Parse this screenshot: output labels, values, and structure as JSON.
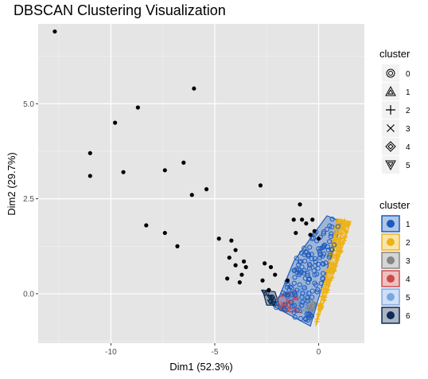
{
  "chart_data": {
    "type": "scatter",
    "title": "DBSCAN Clustering Visualization",
    "xlabel": "Dim1 (52.3%)",
    "ylabel": "Dim2 (29.7%)",
    "xlim": [
      -13.5,
      2.2
    ],
    "ylim": [
      -1.3,
      7.1
    ],
    "x_ticks": [
      -10,
      -5,
      0
    ],
    "x_tick_labels": [
      "-10",
      "-5",
      "0"
    ],
    "y_ticks": [
      0,
      2.5,
      5
    ],
    "y_tick_labels": [
      "0.0",
      "2.5",
      "5.0"
    ],
    "grid": true,
    "panel_background": "#e5e5e5",
    "legend_shape": {
      "title": "cluster",
      "entries": [
        {
          "label": "0",
          "shape": "double-circle"
        },
        {
          "label": "1",
          "shape": "triangle"
        },
        {
          "label": "2",
          "shape": "plus"
        },
        {
          "label": "3",
          "shape": "cross"
        },
        {
          "label": "4",
          "shape": "double-diamond"
        },
        {
          "label": "5",
          "shape": "down-triangle"
        }
      ]
    },
    "legend_fill": {
      "title": "cluster",
      "entries": [
        {
          "label": "1",
          "color": "#1c5bbd"
        },
        {
          "label": "2",
          "color": "#eeb218"
        },
        {
          "label": "3",
          "color": "#868686"
        },
        {
          "label": "4",
          "color": "#cd4a4a"
        },
        {
          "label": "5",
          "color": "#79a7e2"
        },
        {
          "label": "6",
          "color": "#0d2c55"
        }
      ]
    },
    "noise_points": [
      [
        -12.7,
        6.9
      ],
      [
        -8.7,
        4.9
      ],
      [
        -6.0,
        5.4
      ],
      [
        -9.8,
        4.5
      ],
      [
        -11.0,
        3.7
      ],
      [
        -11.0,
        3.1
      ],
      [
        -9.4,
        3.2
      ],
      [
        -7.4,
        3.25
      ],
      [
        -6.5,
        3.45
      ],
      [
        -6.1,
        2.6
      ],
      [
        -5.4,
        2.75
      ],
      [
        -2.8,
        2.85
      ],
      [
        -8.3,
        1.8
      ],
      [
        -7.4,
        1.6
      ],
      [
        -6.8,
        1.25
      ],
      [
        -4.8,
        1.45
      ],
      [
        -4.2,
        1.4
      ],
      [
        -4.0,
        1.15
      ],
      [
        -4.3,
        0.95
      ],
      [
        -4.0,
        0.75
      ],
      [
        -3.6,
        0.85
      ],
      [
        -3.7,
        0.5
      ],
      [
        -4.4,
        0.4
      ],
      [
        -3.8,
        0.3
      ],
      [
        -3.5,
        0.7
      ],
      [
        -2.6,
        0.8
      ],
      [
        -2.3,
        0.7
      ],
      [
        -2.7,
        0.35
      ],
      [
        -2.4,
        0.1
      ],
      [
        -2.1,
        0.5
      ],
      [
        -1.5,
        0.35
      ],
      [
        -0.9,
        2.35
      ],
      [
        -0.8,
        1.95
      ],
      [
        -1.1,
        1.6
      ],
      [
        -0.6,
        1.85
      ],
      [
        -0.3,
        1.95
      ],
      [
        -0.4,
        1.55
      ],
      [
        -0.2,
        1.65
      ],
      [
        0.0,
        1.45
      ],
      [
        -1.2,
        1.95
      ]
    ],
    "clusters": [
      {
        "name": "1",
        "hull": [
          [
            -0.4,
            -0.85
          ],
          [
            1.1,
            1.9
          ],
          [
            0.4,
            2.05
          ],
          [
            -1.2,
            0.85
          ],
          [
            -2.1,
            -0.35
          ]
        ]
      },
      {
        "name": "2",
        "hull": [
          [
            -0.15,
            -0.85
          ],
          [
            0.9,
            1.95
          ],
          [
            1.55,
            1.9
          ],
          [
            0.95,
            0.9
          ]
        ]
      },
      {
        "name": "3",
        "hull": [
          [
            -0.4,
            -0.6
          ],
          [
            -0.1,
            -0.25
          ],
          [
            -0.7,
            -0.1
          ]
        ]
      },
      {
        "name": "4",
        "hull": [
          [
            -2.0,
            -0.1
          ],
          [
            -1.1,
            0.1
          ],
          [
            -0.8,
            -0.5
          ],
          [
            -1.8,
            -0.45
          ]
        ]
      },
      {
        "name": "5",
        "hull": [
          [
            -1.4,
            -0.05
          ],
          [
            -0.6,
            0.2
          ],
          [
            -0.3,
            -0.5
          ],
          [
            -1.1,
            -0.4
          ]
        ]
      },
      {
        "name": "6",
        "hull": [
          [
            -2.7,
            0.1
          ],
          [
            -2.1,
            0.05
          ],
          [
            -1.9,
            -0.3
          ],
          [
            -2.5,
            -0.3
          ]
        ]
      }
    ]
  }
}
